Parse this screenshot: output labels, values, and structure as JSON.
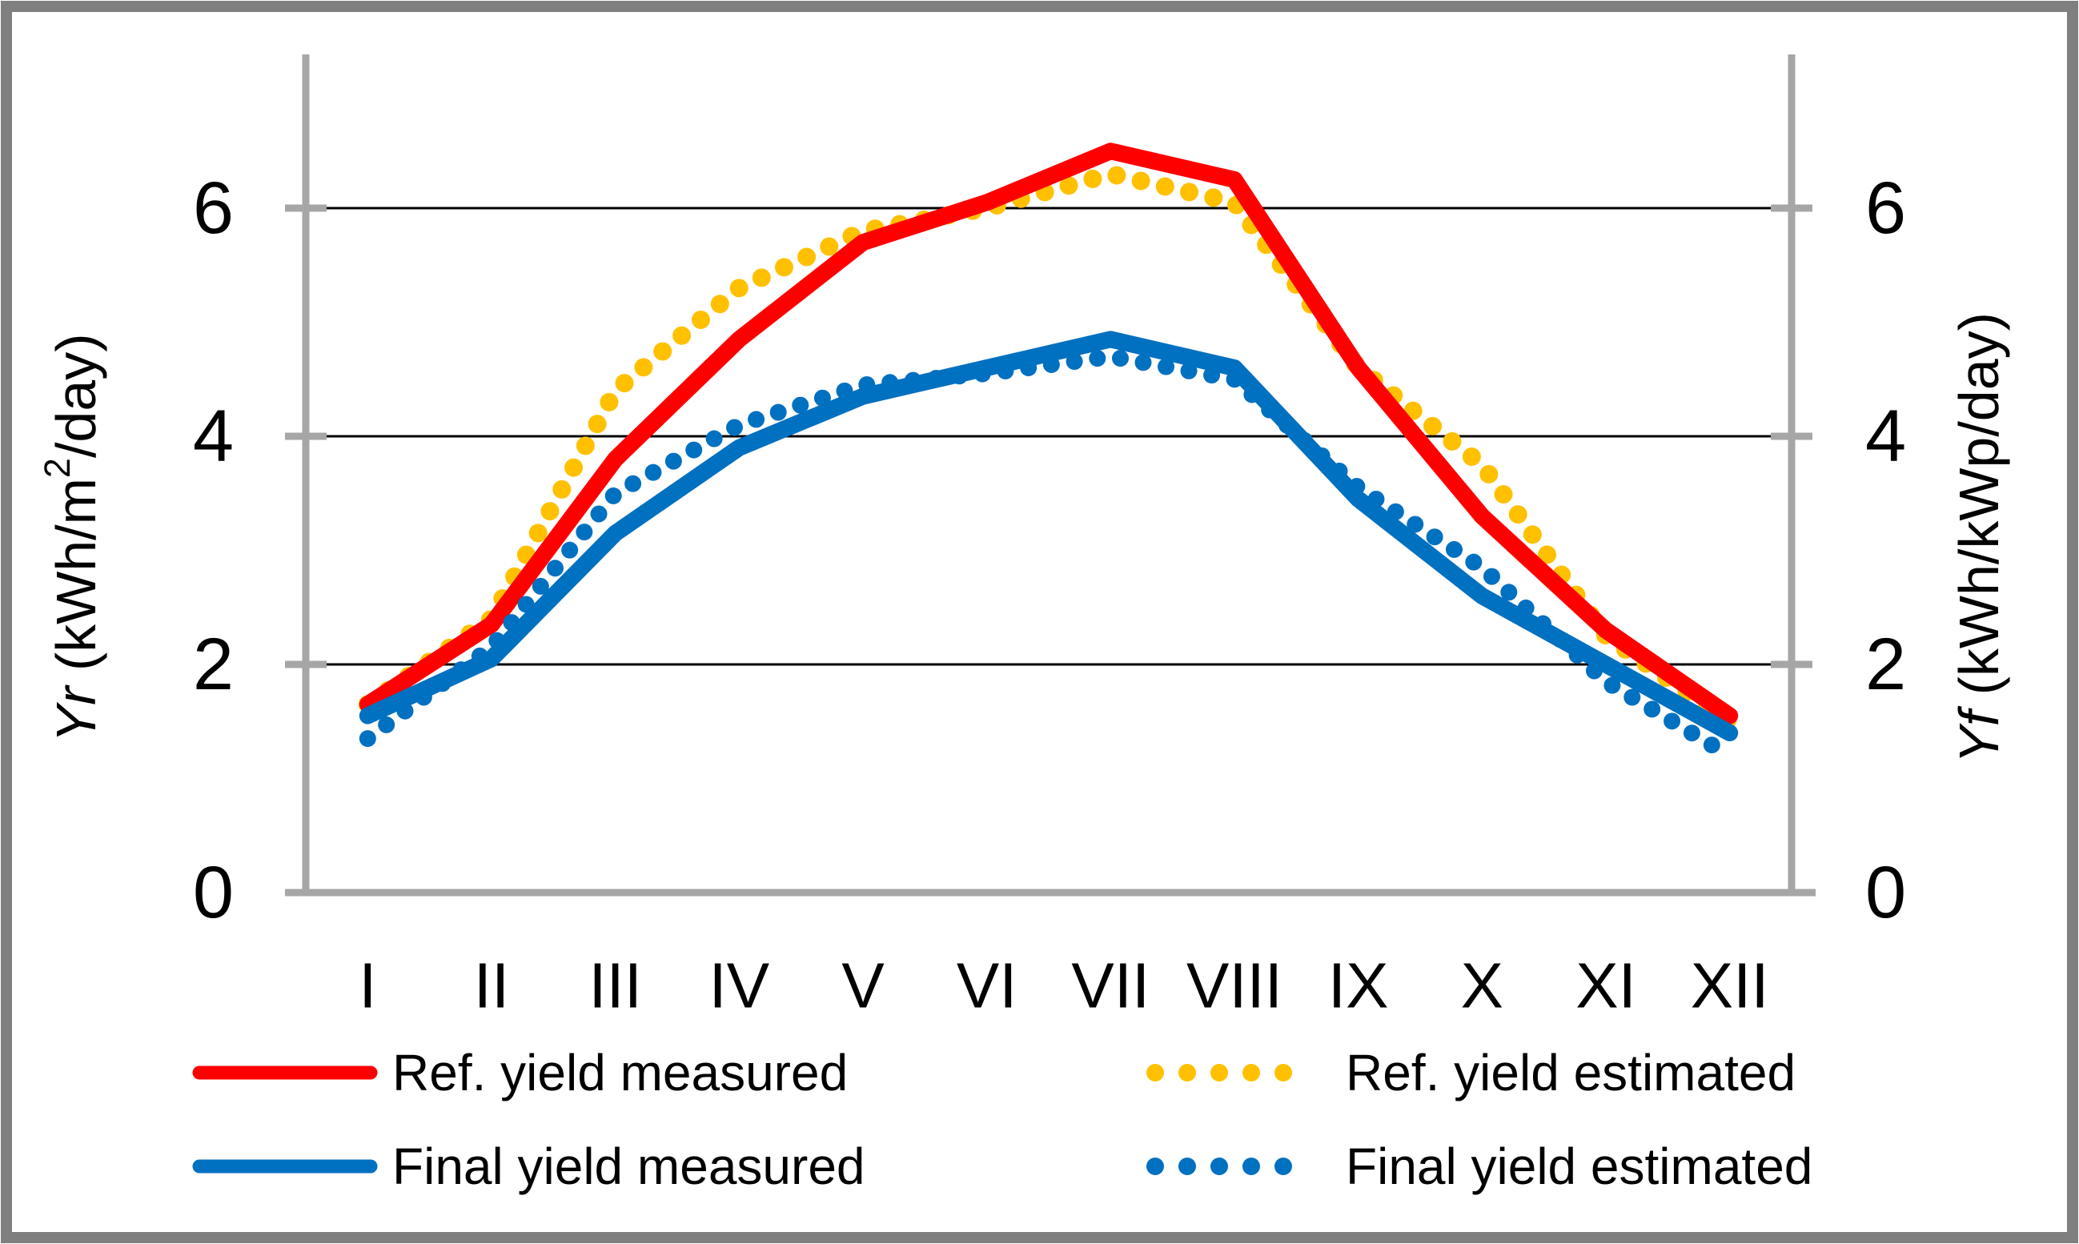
{
  "figure": {
    "kind": "pv-yield-monthly-line-chart",
    "background": "#ffffff",
    "border_color": "#7f7f7f"
  },
  "left_axis": {
    "title_italic": "Yr",
    "title_pre_sup": " (kWh/m",
    "title_sup": "2",
    "title_post_sup": "/day)",
    "tick_labels": [
      "0",
      "2",
      "4",
      "6"
    ]
  },
  "right_axis": {
    "title_italic": "Yf",
    "title_pre_sup": " (kWh/kWp/day)",
    "title_sup": "",
    "title_post_sup": "",
    "tick_labels": [
      "0",
      "2",
      "4",
      "6"
    ]
  },
  "chart_data": {
    "type": "line",
    "categories": [
      "I",
      "II",
      "III",
      "IV",
      "V",
      "VI",
      "VII",
      "VIII",
      "IX",
      "X",
      "XI",
      "XII"
    ],
    "series": [
      {
        "name": "Ref. yield measured",
        "style": "solid",
        "color": "#ff0000",
        "values": [
          1.65,
          2.35,
          3.8,
          4.85,
          5.7,
          6.05,
          6.5,
          6.25,
          4.6,
          3.3,
          2.3,
          1.55
        ]
      },
      {
        "name": "Ref. yield estimated",
        "style": "dotted",
        "color": "#ffc000",
        "values": [
          1.65,
          2.4,
          4.4,
          5.3,
          5.8,
          6.0,
          6.3,
          6.05,
          4.6,
          3.75,
          2.25,
          1.5
        ]
      },
      {
        "name": "Final yield measured",
        "style": "solid",
        "color": "#0070c0",
        "values": [
          1.55,
          2.05,
          3.15,
          3.9,
          4.35,
          4.6,
          4.85,
          4.6,
          3.45,
          2.6,
          2.0,
          1.4
        ]
      },
      {
        "name": "Final yield estimated",
        "style": "dotted",
        "color": "#0070c0",
        "values": [
          1.35,
          2.15,
          3.5,
          4.1,
          4.45,
          4.55,
          4.7,
          4.5,
          3.55,
          2.85,
          1.85,
          1.2
        ]
      }
    ],
    "ylim": [
      0,
      7.35
    ],
    "yticks": [
      0,
      2,
      4,
      6
    ],
    "grid": "horizontal-black-at-2-4-6",
    "axis_color": "#a6a6a6",
    "gridline_color": "#000000",
    "legend_position": "bottom-two-columns"
  },
  "legend": {
    "rows": [
      [
        "Ref. yield measured",
        "Ref. yield estimated"
      ],
      [
        "Final yield measured",
        "Final yield estimated"
      ]
    ]
  }
}
